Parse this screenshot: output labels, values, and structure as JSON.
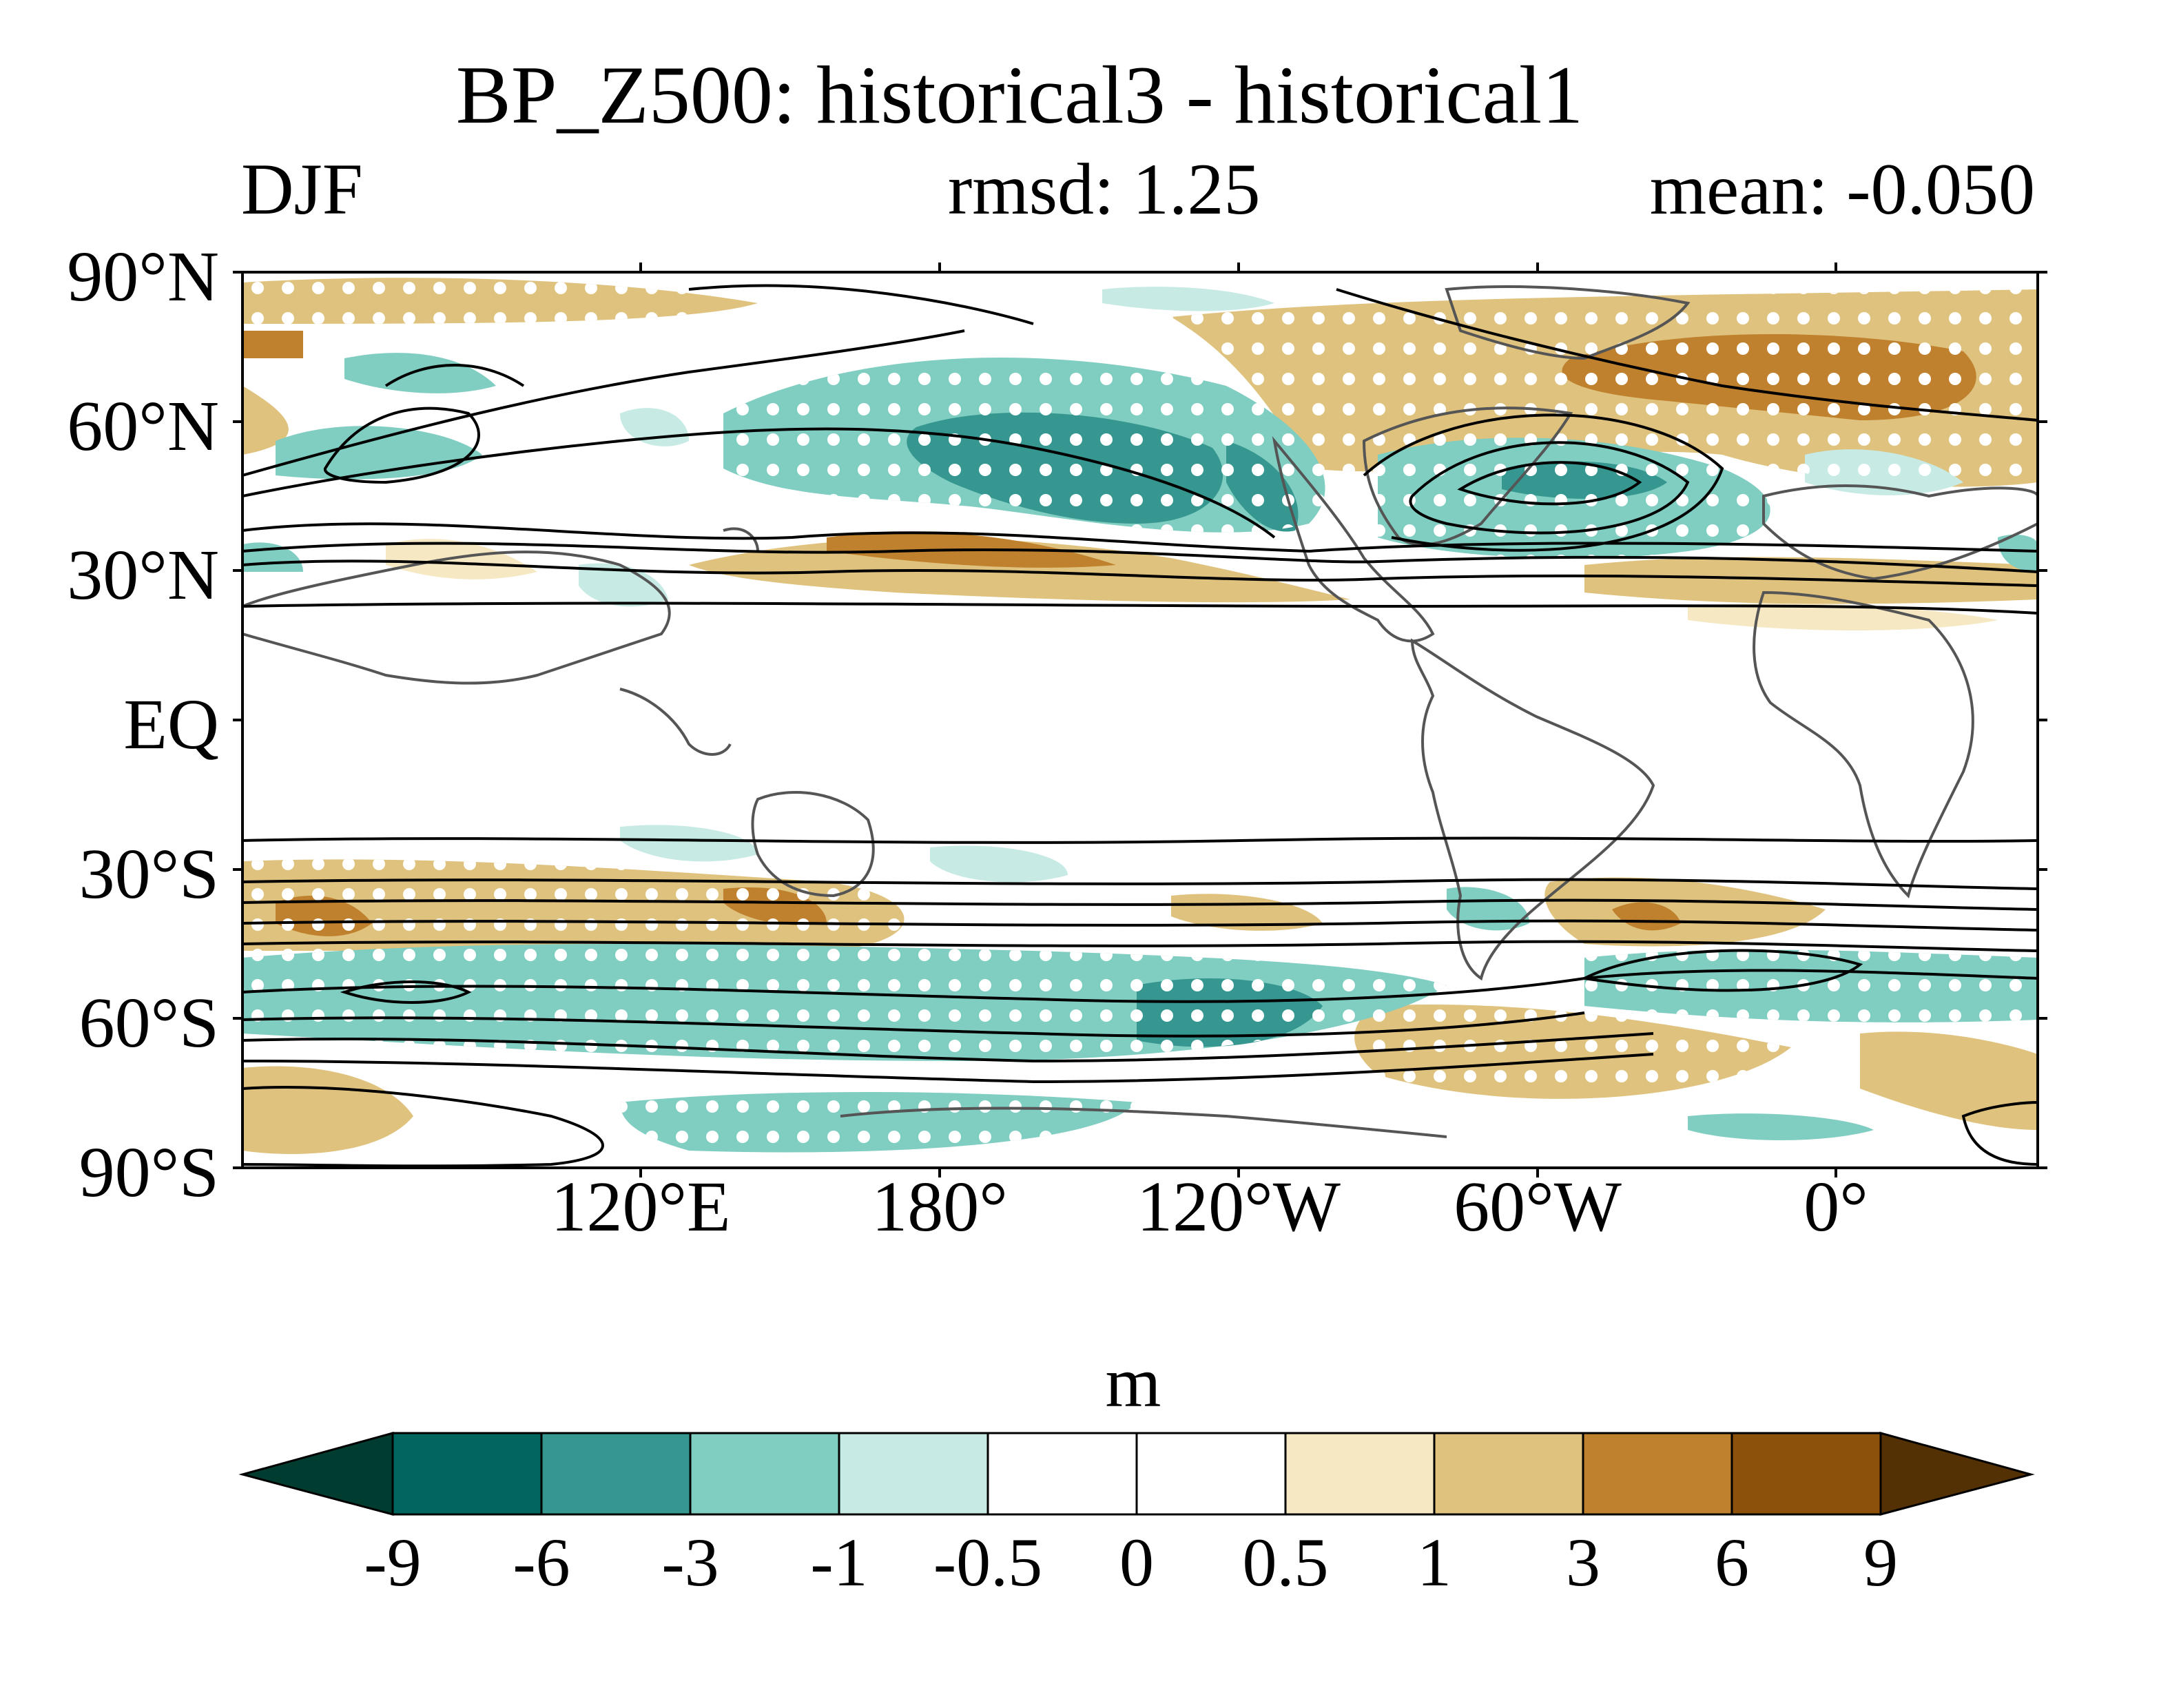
{
  "title": "BP_Z500: historical3 - historical1",
  "season": "DJF",
  "rmsd": "rmsd: 1.25",
  "mean": "mean: -0.050",
  "lat_ticks": [
    "90°N",
    "60°N",
    "30°N",
    "EQ",
    "30°S",
    "60°S",
    "90°S"
  ],
  "lon_ticks": [
    "120°E",
    "180°",
    "120°W",
    "60°W",
    "0°"
  ],
  "colorbar": {
    "unit": "m",
    "levels": [
      "-9",
      "-6",
      "-3",
      "-1",
      "-0.5",
      "0",
      "0.5",
      "1",
      "3",
      "6",
      "9"
    ],
    "colors": [
      "#01665e",
      "#35978f",
      "#80cdc1",
      "#c7eae5",
      "#ffffff",
      "#ffffff",
      "#f6e8c3",
      "#dfc27d",
      "#bf812d",
      "#8c510a"
    ],
    "low_extend_color": "#003c30",
    "high_extend_color": "#543005"
  },
  "palette": {
    "teal_dark": "#35978f",
    "teal_light": "#80cdc1",
    "teal_pale": "#c7eae5",
    "brown_pale": "#f6e8c3",
    "brown_light": "#dfc27d",
    "brown_mid": "#bf812d",
    "coast": "#555555",
    "contour": "#000000",
    "stipple": "#ffffff"
  }
}
